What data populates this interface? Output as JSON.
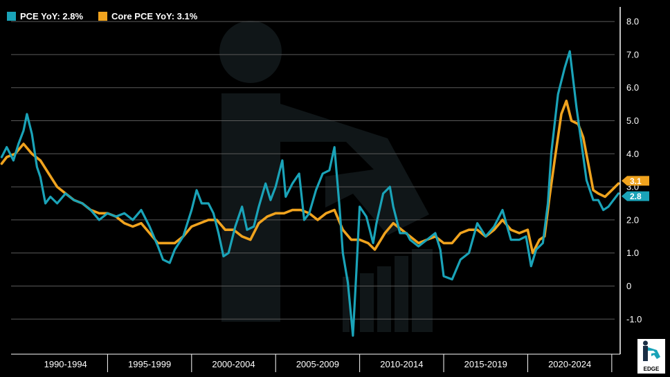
{
  "legend": [
    {
      "label": "PCE YoY: 2.8%",
      "color": "#1aa3b8"
    },
    {
      "label": "Core PCE YoY: 3.1%",
      "color": "#f0a31e"
    }
  ],
  "logo": {
    "text": "EDGE"
  },
  "chart_data": {
    "type": "line",
    "title": "",
    "xlabel": "",
    "ylabel": "",
    "ylim": [
      -1.5,
      8.0
    ],
    "y_ticks": [
      "8.0",
      "7.0",
      "6.0",
      "5.0",
      "4.0",
      "3.0",
      "2.0",
      "1.0",
      "0",
      "-1.0"
    ],
    "x_range": [
      1988.6,
      2025.5
    ],
    "x_periods": [
      {
        "label": "1990-1994",
        "start": 1990,
        "end": 1995
      },
      {
        "label": "1995-1999",
        "start": 1995,
        "end": 2000
      },
      {
        "label": "2000-2004",
        "start": 2000,
        "end": 2005
      },
      {
        "label": "2005-2009",
        "start": 2005,
        "end": 2010
      },
      {
        "label": "2010-2014",
        "start": 2010,
        "end": 2015
      },
      {
        "label": "2015-2019",
        "start": 2015,
        "end": 2020
      },
      {
        "label": "2020-2024",
        "start": 2020,
        "end": 2025
      }
    ],
    "end_labels": [
      {
        "text": "3.1",
        "value": 3.1,
        "color": "#f0a31e"
      },
      {
        "text": "2.8",
        "value": 2.8,
        "color": "#1aa3b8"
      }
    ],
    "grid": true,
    "legend_position": "top-left",
    "series": [
      {
        "name": "PCE YoY",
        "color": "#1aa3b8",
        "points": [
          [
            1988.7,
            3.9
          ],
          [
            1989.0,
            4.2
          ],
          [
            1989.4,
            3.8
          ],
          [
            1989.7,
            4.3
          ],
          [
            1990.0,
            4.7
          ],
          [
            1990.2,
            5.2
          ],
          [
            1990.5,
            4.6
          ],
          [
            1990.8,
            3.6
          ],
          [
            1991.0,
            3.3
          ],
          [
            1991.3,
            2.5
          ],
          [
            1991.6,
            2.7
          ],
          [
            1992.0,
            2.5
          ],
          [
            1992.5,
            2.8
          ],
          [
            1993.0,
            2.6
          ],
          [
            1993.5,
            2.5
          ],
          [
            1994.0,
            2.3
          ],
          [
            1994.5,
            2.0
          ],
          [
            1995.0,
            2.2
          ],
          [
            1995.5,
            2.1
          ],
          [
            1996.0,
            2.2
          ],
          [
            1996.5,
            2.0
          ],
          [
            1997.0,
            2.3
          ],
          [
            1997.5,
            1.8
          ],
          [
            1998.0,
            1.2
          ],
          [
            1998.3,
            0.8
          ],
          [
            1998.7,
            0.7
          ],
          [
            1999.0,
            1.1
          ],
          [
            1999.5,
            1.5
          ],
          [
            2000.0,
            2.3
          ],
          [
            2000.3,
            2.9
          ],
          [
            2000.6,
            2.5
          ],
          [
            2001.0,
            2.5
          ],
          [
            2001.3,
            2.2
          ],
          [
            2001.6,
            1.6
          ],
          [
            2001.9,
            0.9
          ],
          [
            2002.2,
            1.0
          ],
          [
            2002.6,
            1.8
          ],
          [
            2003.0,
            2.4
          ],
          [
            2003.3,
            1.7
          ],
          [
            2003.7,
            1.8
          ],
          [
            2004.0,
            2.4
          ],
          [
            2004.4,
            3.1
          ],
          [
            2004.7,
            2.6
          ],
          [
            2005.0,
            3.0
          ],
          [
            2005.4,
            3.8
          ],
          [
            2005.6,
            2.7
          ],
          [
            2006.0,
            3.1
          ],
          [
            2006.4,
            3.4
          ],
          [
            2006.7,
            2.0
          ],
          [
            2007.0,
            2.2
          ],
          [
            2007.4,
            2.9
          ],
          [
            2007.8,
            3.4
          ],
          [
            2008.2,
            3.5
          ],
          [
            2008.5,
            4.2
          ],
          [
            2008.8,
            2.4
          ],
          [
            2009.0,
            1.0
          ],
          [
            2009.3,
            0.1
          ],
          [
            2009.6,
            -1.5
          ],
          [
            2009.8,
            0.4
          ],
          [
            2010.0,
            2.4
          ],
          [
            2010.4,
            2.1
          ],
          [
            2010.8,
            1.3
          ],
          [
            2011.0,
            1.9
          ],
          [
            2011.4,
            2.8
          ],
          [
            2011.8,
            3.0
          ],
          [
            2012.0,
            2.4
          ],
          [
            2012.4,
            1.6
          ],
          [
            2012.8,
            1.6
          ],
          [
            2013.0,
            1.4
          ],
          [
            2013.5,
            1.2
          ],
          [
            2014.0,
            1.4
          ],
          [
            2014.5,
            1.6
          ],
          [
            2014.8,
            1.1
          ],
          [
            2015.0,
            0.3
          ],
          [
            2015.5,
            0.2
          ],
          [
            2016.0,
            0.8
          ],
          [
            2016.5,
            1.0
          ],
          [
            2017.0,
            1.9
          ],
          [
            2017.5,
            1.5
          ],
          [
            2018.0,
            1.8
          ],
          [
            2018.5,
            2.3
          ],
          [
            2019.0,
            1.4
          ],
          [
            2019.5,
            1.4
          ],
          [
            2019.9,
            1.5
          ],
          [
            2020.2,
            0.6
          ],
          [
            2020.5,
            1.1
          ],
          [
            2020.9,
            1.3
          ],
          [
            2021.2,
            2.5
          ],
          [
            2021.4,
            4.0
          ],
          [
            2021.8,
            5.8
          ],
          [
            2022.2,
            6.6
          ],
          [
            2022.5,
            7.1
          ],
          [
            2022.9,
            5.4
          ],
          [
            2023.2,
            4.3
          ],
          [
            2023.5,
            3.2
          ],
          [
            2023.9,
            2.6
          ],
          [
            2024.2,
            2.6
          ],
          [
            2024.5,
            2.3
          ],
          [
            2024.8,
            2.4
          ],
          [
            2025.1,
            2.6
          ],
          [
            2025.4,
            2.8
          ]
        ]
      },
      {
        "name": "Core PCE YoY",
        "color": "#f0a31e",
        "points": [
          [
            1988.7,
            3.7
          ],
          [
            1989.0,
            3.9
          ],
          [
            1989.5,
            4.0
          ],
          [
            1990.0,
            4.3
          ],
          [
            1990.5,
            4.0
          ],
          [
            1991.0,
            3.8
          ],
          [
            1991.5,
            3.4
          ],
          [
            1992.0,
            3.0
          ],
          [
            1992.5,
            2.8
          ],
          [
            1993.0,
            2.6
          ],
          [
            1993.5,
            2.5
          ],
          [
            1994.0,
            2.3
          ],
          [
            1994.5,
            2.2
          ],
          [
            1995.0,
            2.2
          ],
          [
            1995.5,
            2.1
          ],
          [
            1996.0,
            1.9
          ],
          [
            1996.5,
            1.8
          ],
          [
            1997.0,
            1.9
          ],
          [
            1997.5,
            1.6
          ],
          [
            1998.0,
            1.3
          ],
          [
            1998.5,
            1.3
          ],
          [
            1999.0,
            1.3
          ],
          [
            1999.5,
            1.5
          ],
          [
            2000.0,
            1.8
          ],
          [
            2000.5,
            1.9
          ],
          [
            2001.0,
            2.0
          ],
          [
            2001.5,
            2.0
          ],
          [
            2002.0,
            1.7
          ],
          [
            2002.5,
            1.7
          ],
          [
            2003.0,
            1.5
          ],
          [
            2003.5,
            1.4
          ],
          [
            2004.0,
            1.9
          ],
          [
            2004.5,
            2.1
          ],
          [
            2005.0,
            2.2
          ],
          [
            2005.5,
            2.2
          ],
          [
            2006.0,
            2.3
          ],
          [
            2006.5,
            2.3
          ],
          [
            2007.0,
            2.2
          ],
          [
            2007.5,
            2.0
          ],
          [
            2008.0,
            2.2
          ],
          [
            2008.5,
            2.3
          ],
          [
            2009.0,
            1.7
          ],
          [
            2009.5,
            1.4
          ],
          [
            2010.0,
            1.4
          ],
          [
            2010.5,
            1.3
          ],
          [
            2010.9,
            1.1
          ],
          [
            2011.5,
            1.6
          ],
          [
            2012.0,
            1.9
          ],
          [
            2012.5,
            1.7
          ],
          [
            2013.0,
            1.5
          ],
          [
            2013.5,
            1.3
          ],
          [
            2014.0,
            1.4
          ],
          [
            2014.5,
            1.5
          ],
          [
            2015.0,
            1.3
          ],
          [
            2015.5,
            1.3
          ],
          [
            2016.0,
            1.6
          ],
          [
            2016.5,
            1.7
          ],
          [
            2017.0,
            1.7
          ],
          [
            2017.5,
            1.5
          ],
          [
            2018.0,
            1.7
          ],
          [
            2018.5,
            2.0
          ],
          [
            2019.0,
            1.7
          ],
          [
            2019.5,
            1.6
          ],
          [
            2020.0,
            1.7
          ],
          [
            2020.3,
            1.0
          ],
          [
            2020.7,
            1.4
          ],
          [
            2021.0,
            1.5
          ],
          [
            2021.3,
            2.7
          ],
          [
            2021.6,
            3.8
          ],
          [
            2022.0,
            5.2
          ],
          [
            2022.3,
            5.6
          ],
          [
            2022.6,
            5.0
          ],
          [
            2023.0,
            4.9
          ],
          [
            2023.3,
            4.5
          ],
          [
            2023.6,
            3.7
          ],
          [
            2023.9,
            2.9
          ],
          [
            2024.2,
            2.8
          ],
          [
            2024.6,
            2.7
          ],
          [
            2025.0,
            2.9
          ],
          [
            2025.4,
            3.1
          ]
        ]
      }
    ]
  }
}
